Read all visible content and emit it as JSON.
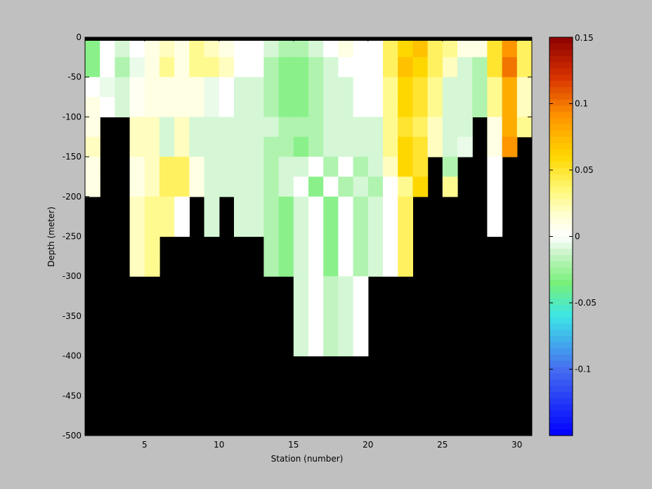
{
  "chart_data": {
    "type": "heatmap",
    "xlabel": "Station (number)",
    "ylabel": "Depth (meter)",
    "xlim": [
      1,
      31
    ],
    "ylim": [
      -500,
      0
    ],
    "x_ticks": [
      5,
      10,
      15,
      20,
      25,
      30
    ],
    "y_ticks": [
      0,
      -50,
      -100,
      -150,
      -200,
      -250,
      -300,
      -350,
      -400,
      -450,
      -500
    ],
    "colorbar": {
      "range": [
        -0.15,
        0.15
      ],
      "ticks": [
        "0.15",
        "0.1",
        "0.05",
        "0",
        "-0.05",
        "-0.1"
      ],
      "tick_values": [
        0.15,
        0.1,
        0.05,
        0,
        -0.05,
        -0.1
      ],
      "colormap": "blue-cyan-green-white-yellow-orange-red"
    },
    "no_data_color": "#000000",
    "stations": [
      1,
      2,
      3,
      4,
      5,
      6,
      7,
      8,
      9,
      10,
      11,
      12,
      13,
      14,
      15,
      16,
      17,
      18,
      19,
      20,
      21,
      22,
      23,
      24,
      25,
      26,
      27,
      28,
      29,
      30
    ],
    "depth_bins": [
      [
        0,
        -25
      ],
      [
        -25,
        -50
      ],
      [
        -50,
        -75
      ],
      [
        -75,
        -100
      ],
      [
        -100,
        -125
      ],
      [
        -125,
        -150
      ],
      [
        -150,
        -175
      ],
      [
        -175,
        -200
      ],
      [
        -200,
        -225
      ],
      [
        -225,
        -250
      ],
      [
        -250,
        -275
      ],
      [
        -275,
        -300
      ],
      [
        -300,
        -325
      ],
      [
        -325,
        -350
      ],
      [
        -350,
        -375
      ],
      [
        -375,
        -400
      ]
    ],
    "bottom_depth": [
      -200,
      -100,
      -100,
      -300,
      -300,
      -250,
      -250,
      -200,
      -250,
      -200,
      -250,
      -250,
      -300,
      -300,
      -400,
      -400,
      -400,
      -400,
      -400,
      -300,
      -300,
      -300,
      -200,
      -150,
      -200,
      -150,
      -100,
      -250,
      -150,
      -125
    ],
    "values": [
      [
        -0.03,
        0.0,
        -0.01,
        0.0,
        0.01,
        0.02,
        0.01,
        0.03,
        0.02,
        0.01,
        0.0,
        0.0,
        -0.01,
        -0.02,
        -0.02,
        -0.01,
        0.0,
        0.01,
        0.0,
        0.0,
        0.04,
        0.06,
        0.07,
        0.04,
        0.03,
        0.01,
        0.01,
        0.05,
        0.09,
        0.04
      ],
      [
        -0.03,
        0.0,
        -0.02,
        -0.005,
        0.01,
        0.03,
        0.01,
        0.03,
        0.03,
        0.02,
        0.0,
        0.0,
        -0.02,
        -0.03,
        -0.03,
        -0.02,
        -0.01,
        0.0,
        0.0,
        0.0,
        0.04,
        0.07,
        0.06,
        0.04,
        0.02,
        -0.01,
        -0.02,
        0.05,
        0.1,
        0.04
      ],
      [
        0.0,
        -0.005,
        -0.01,
        0.005,
        0.01,
        0.01,
        0.01,
        0.01,
        -0.005,
        0.0,
        -0.01,
        -0.01,
        -0.02,
        -0.03,
        -0.03,
        -0.02,
        -0.01,
        -0.01,
        0.0,
        0.0,
        0.03,
        0.06,
        0.05,
        0.03,
        -0.01,
        -0.01,
        -0.02,
        0.03,
        0.08,
        0.02
      ],
      [
        0.01,
        0.0,
        -0.01,
        0.005,
        0.01,
        0.01,
        0.01,
        0.01,
        -0.005,
        0.0,
        -0.01,
        -0.01,
        -0.02,
        -0.03,
        -0.03,
        -0.02,
        -0.01,
        -0.01,
        0.0,
        0.0,
        0.03,
        0.06,
        0.05,
        0.03,
        -0.01,
        -0.01,
        -0.02,
        0.03,
        0.08,
        0.02
      ],
      [
        0.01,
        0.01,
        -0.005,
        0.02,
        0.02,
        -0.01,
        0.02,
        -0.01,
        -0.01,
        -0.01,
        -0.01,
        -0.01,
        -0.01,
        -0.02,
        -0.02,
        -0.02,
        -0.01,
        -0.01,
        -0.01,
        -0.01,
        0.03,
        0.05,
        0.04,
        0.02,
        -0.01,
        -0.01,
        0.0,
        0.01,
        0.08,
        0.03
      ],
      [
        0.02,
        0.01,
        0.0,
        0.02,
        0.02,
        -0.01,
        0.02,
        -0.01,
        -0.01,
        -0.01,
        -0.01,
        -0.01,
        -0.02,
        -0.02,
        -0.03,
        -0.02,
        -0.01,
        -0.01,
        -0.01,
        -0.01,
        0.03,
        0.06,
        0.05,
        0.02,
        -0.01,
        -0.005,
        0.0,
        0.01,
        0.09,
        0.03
      ],
      [
        0.01,
        0.01,
        0.0,
        0.01,
        0.02,
        0.04,
        0.04,
        0.01,
        -0.01,
        -0.01,
        -0.01,
        -0.01,
        -0.02,
        -0.01,
        -0.01,
        0.0,
        -0.02,
        0.0,
        -0.02,
        -0.01,
        0.02,
        0.06,
        0.05,
        0.03,
        -0.02,
        0.0,
        0.0,
        0.0,
        0.06,
        0.03
      ],
      [
        0.01,
        0.01,
        0.0,
        0.01,
        0.02,
        0.04,
        0.04,
        0.01,
        -0.01,
        -0.01,
        -0.01,
        -0.01,
        -0.02,
        -0.01,
        0.0,
        -0.03,
        0.0,
        -0.02,
        -0.01,
        -0.02,
        0.0,
        0.03,
        0.06,
        0.05,
        0.03,
        0.0,
        0.0,
        0.0,
        0.06,
        0.03
      ],
      [
        0.0,
        0.0,
        0.0,
        0.02,
        0.03,
        0.03,
        0.0,
        0.01,
        -0.01,
        -0.01,
        -0.01,
        -0.01,
        -0.02,
        -0.03,
        -0.01,
        0.0,
        -0.03,
        0.0,
        -0.02,
        -0.01,
        0.0,
        0.04,
        0.06,
        0.05,
        0.03,
        0.0,
        0.0,
        0.0,
        0.06,
        0.03
      ],
      [
        0.0,
        0.0,
        0.0,
        0.02,
        0.03,
        0.03,
        0.0,
        0.01,
        -0.01,
        -0.01,
        -0.01,
        -0.01,
        -0.02,
        -0.03,
        -0.01,
        0.0,
        -0.03,
        0.0,
        -0.02,
        -0.01,
        0.0,
        0.04,
        0.06,
        0.05,
        0.03,
        0.0,
        0.0,
        0.0,
        0.06,
        0.03
      ],
      [
        0.0,
        0.0,
        0.0,
        0.02,
        0.03,
        0.03,
        0.0,
        0.01,
        -0.01,
        -0.01,
        -0.01,
        -0.01,
        -0.02,
        -0.03,
        -0.01,
        0.0,
        -0.03,
        0.0,
        -0.02,
        -0.01,
        0.0,
        0.04,
        0.06,
        0.05,
        0.03,
        0.0,
        0.0,
        0.0,
        0.06,
        0.03
      ],
      [
        0.0,
        0.0,
        0.0,
        0.02,
        0.03,
        0.03,
        0.0,
        0.01,
        -0.01,
        -0.01,
        -0.01,
        -0.01,
        -0.02,
        -0.03,
        -0.01,
        0.0,
        -0.03,
        0.0,
        -0.02,
        -0.01,
        0.0,
        0.04,
        0.06,
        0.05,
        0.03,
        0.0,
        0.0,
        0.0,
        0.06,
        0.03
      ],
      [
        0.0,
        0.0,
        0.0,
        0.02,
        0.03,
        0.03,
        0.0,
        0.01,
        -0.01,
        -0.01,
        -0.01,
        -0.01,
        -0.02,
        -0.03,
        -0.01,
        0.0,
        -0.015,
        -0.01,
        0.0,
        -0.02,
        0.0,
        0.04,
        0.06,
        0.05,
        0.03,
        0.0,
        0.0,
        0.0,
        0.06,
        0.03
      ],
      [
        0.0,
        0.0,
        0.0,
        0.02,
        0.03,
        0.03,
        0.0,
        0.01,
        -0.01,
        -0.01,
        -0.01,
        -0.01,
        -0.02,
        -0.03,
        -0.01,
        0.0,
        -0.015,
        -0.01,
        0.0,
        -0.02,
        0.0,
        0.04,
        0.06,
        0.05,
        0.03,
        0.0,
        0.0,
        0.0,
        0.06,
        0.03
      ],
      [
        0.0,
        0.0,
        0.0,
        0.02,
        0.03,
        0.03,
        0.0,
        0.01,
        -0.01,
        -0.01,
        -0.01,
        -0.01,
        -0.02,
        -0.03,
        -0.01,
        0.0,
        -0.015,
        -0.01,
        0.0,
        -0.02,
        0.0,
        0.04,
        0.06,
        0.05,
        0.03,
        0.0,
        0.0,
        0.0,
        0.06,
        0.03
      ],
      [
        0.0,
        0.0,
        0.0,
        0.02,
        0.03,
        0.03,
        0.0,
        0.01,
        -0.01,
        -0.01,
        -0.01,
        -0.01,
        -0.02,
        -0.03,
        -0.01,
        0.0,
        -0.015,
        -0.01,
        0.0,
        -0.02,
        0.0,
        0.04,
        0.06,
        0.05,
        0.03,
        0.0,
        0.0,
        0.0,
        0.06,
        0.03
      ]
    ]
  }
}
